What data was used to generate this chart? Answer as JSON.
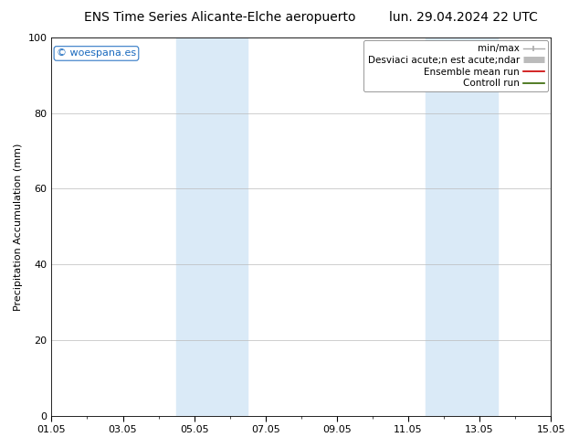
{
  "title_left": "ENS Time Series Alicante-Elche aeropuerto",
  "title_right": "lun. 29.04.2024 22 UTC",
  "ylabel": "Precipitation Accumulation (mm)",
  "ylim": [
    0,
    100
  ],
  "xlim": [
    0,
    14
  ],
  "xtick_labels": [
    "01.05",
    "03.05",
    "05.05",
    "07.05",
    "09.05",
    "11.05",
    "13.05",
    "15.05"
  ],
  "xtick_positions": [
    0,
    2,
    4,
    6,
    8,
    10,
    12,
    14
  ],
  "ytick_labels": [
    "0",
    "20",
    "40",
    "60",
    "80",
    "100"
  ],
  "ytick_positions": [
    0,
    20,
    40,
    60,
    80,
    100
  ],
  "shaded_regions": [
    {
      "xmin": 3.5,
      "xmax": 5.5,
      "color": "#daeaf7"
    },
    {
      "xmin": 10.5,
      "xmax": 12.5,
      "color": "#daeaf7"
    }
  ],
  "watermark": "© woespana.es",
  "watermark_color": "#1a6abf",
  "legend_label_minmax": "min/max",
  "legend_label_std": "Desviaci acute;n est acute;ndar",
  "legend_label_mean": "Ensemble mean run",
  "legend_label_ctrl": "Controll run",
  "color_minmax": "#aaaaaa",
  "color_std": "#bbbbbb",
  "color_mean": "#cc0000",
  "color_ctrl": "#336600",
  "bg_color": "#ffffff",
  "grid_color": "#bbbbbb",
  "title_fontsize": 10,
  "axis_label_fontsize": 8,
  "tick_fontsize": 8,
  "legend_fontsize": 7.5
}
